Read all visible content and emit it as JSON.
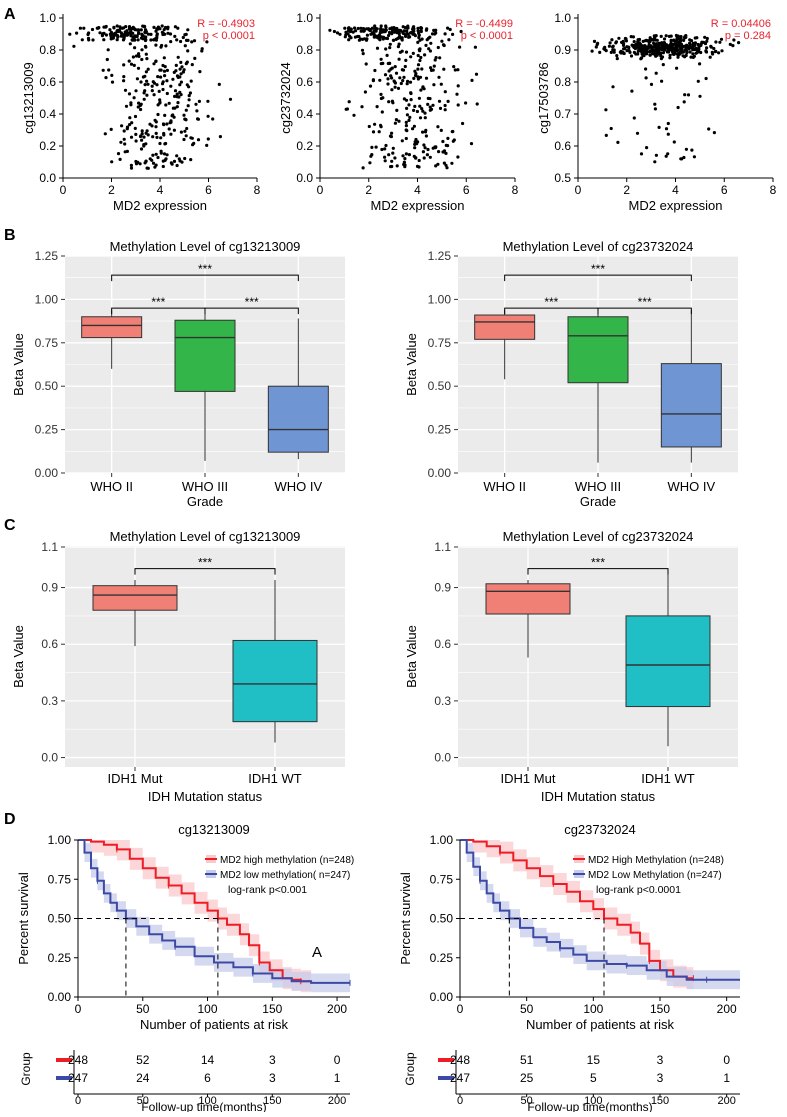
{
  "panel_labels": [
    "A",
    "B",
    "C",
    "D"
  ],
  "colors": {
    "who2": "#F07F76",
    "who3": "#33B54A",
    "who4": "#7095D3",
    "idh_mut": "#F07F76",
    "idh_wt": "#20BFC6",
    "km_high": "#EE1C24",
    "km_low": "#3C4AA6",
    "km_high_band": "#F9C9CC",
    "km_low_band": "#C7CCEB",
    "annot": "#E8242E",
    "panel_bg": "#EBEBEB"
  },
  "chart_data": [
    {
      "id": "A1",
      "type": "scatter",
      "xlabel": "MD2 expression",
      "ylabel": "cg13213009",
      "xlim": [
        0,
        8
      ],
      "ylim": [
        0,
        1.0
      ],
      "xticks": [
        "0",
        "2",
        "4",
        "6",
        "8"
      ],
      "yticks": [
        "0.0",
        "0.2",
        "0.4",
        "0.6",
        "0.8",
        "1.0"
      ],
      "annotation": [
        "R = -0.4903",
        "p < 0.0001"
      ],
      "point_count": 420,
      "seed": 11,
      "pattern": "decline",
      "note": "points cluster near 0.9 for low expression and spread toward 0.1 at higher expression"
    },
    {
      "id": "A2",
      "type": "scatter",
      "xlabel": "MD2 expression",
      "ylabel": "cg23732024",
      "xlim": [
        0,
        8
      ],
      "ylim": [
        0,
        1.0
      ],
      "xticks": [
        "0",
        "2",
        "4",
        "6",
        "8"
      ],
      "yticks": [
        "0.0",
        "0.2",
        "0.4",
        "0.6",
        "0.8",
        "1.0"
      ],
      "annotation": [
        "R = -0.4499",
        "p < 0.0001"
      ],
      "point_count": 420,
      "seed": 23,
      "pattern": "decline"
    },
    {
      "id": "A3",
      "type": "scatter",
      "xlabel": "MD2 expression",
      "ylabel": "cg17503786",
      "xlim": [
        0,
        8
      ],
      "ylim": [
        0.5,
        1.0
      ],
      "xticks": [
        "0",
        "2",
        "4",
        "6",
        "8"
      ],
      "yticks": [
        "0.5",
        "0.6",
        "0.7",
        "0.8",
        "0.9",
        "1.0"
      ],
      "annotation": [
        "R = 0.04406",
        "p = 0.284"
      ],
      "point_count": 420,
      "seed": 37,
      "pattern": "flat"
    },
    {
      "id": "B1",
      "type": "box",
      "title": "Methylation Level of cg13213009",
      "xlabel": "Grade",
      "ylabel": "Beta Value",
      "ylim": [
        0,
        1.25
      ],
      "yticks": [
        0,
        0.25,
        0.5,
        0.75,
        1.0,
        1.25
      ],
      "ytick_labels": [
        "0.00",
        "0.25",
        "0.50",
        "0.75",
        "1.00",
        "1.25"
      ],
      "categories": [
        "WHO II",
        "WHO III",
        "WHO IV"
      ],
      "boxes": [
        {
          "min": 0.6,
          "q1": 0.78,
          "median": 0.85,
          "q3": 0.9,
          "max": 0.94,
          "color_key": "who2"
        },
        {
          "min": 0.07,
          "q1": 0.47,
          "median": 0.78,
          "q3": 0.88,
          "max": 0.95,
          "color_key": "who3"
        },
        {
          "min": 0.08,
          "q1": 0.12,
          "median": 0.25,
          "q3": 0.5,
          "max": 0.89,
          "color_key": "who4"
        }
      ],
      "significance": [
        {
          "pair": [
            0,
            1
          ],
          "level": 0.95,
          "label": "***"
        },
        {
          "pair": [
            1,
            2
          ],
          "level": 0.95,
          "label": "***"
        },
        {
          "pair": [
            0,
            2
          ],
          "level": 1.14,
          "label": "***"
        }
      ]
    },
    {
      "id": "B2",
      "type": "box",
      "title": "Methylation Level of cg23732024",
      "xlabel": "Grade",
      "ylabel": "Beta Value",
      "ylim": [
        0,
        1.25
      ],
      "yticks": [
        0,
        0.25,
        0.5,
        0.75,
        1.0,
        1.25
      ],
      "ytick_labels": [
        "0.00",
        "0.25",
        "0.50",
        "0.75",
        "1.00",
        "1.25"
      ],
      "categories": [
        "WHO II",
        "WHO III",
        "WHO IV"
      ],
      "boxes": [
        {
          "min": 0.54,
          "q1": 0.77,
          "median": 0.87,
          "q3": 0.91,
          "max": 0.94,
          "color_key": "who2"
        },
        {
          "min": 0.06,
          "q1": 0.52,
          "median": 0.79,
          "q3": 0.9,
          "max": 0.95,
          "color_key": "who3"
        },
        {
          "min": 0.06,
          "q1": 0.15,
          "median": 0.34,
          "q3": 0.63,
          "max": 0.94,
          "color_key": "who4"
        }
      ],
      "significance": [
        {
          "pair": [
            0,
            1
          ],
          "level": 0.95,
          "label": "***"
        },
        {
          "pair": [
            1,
            2
          ],
          "level": 0.95,
          "label": "***"
        },
        {
          "pair": [
            0,
            2
          ],
          "level": 1.14,
          "label": "***"
        }
      ]
    },
    {
      "id": "C1",
      "type": "box",
      "title": "Methylation Level of cg13213009",
      "xlabel": "IDH Mutation status",
      "ylabel": "Beta Value",
      "ylim": [
        -0.05,
        1.12
      ],
      "yticks": [
        0,
        0.3,
        0.6,
        0.9
      ],
      "ytick_labels": [
        "0.0",
        "0.3",
        "0.6",
        "0.9"
      ],
      "top_tick_label": "1.1",
      "categories": [
        "IDH1 Mut",
        "IDH1 WT"
      ],
      "boxes": [
        {
          "min": 0.59,
          "q1": 0.78,
          "median": 0.86,
          "q3": 0.91,
          "max": 0.94,
          "color_key": "idh_mut"
        },
        {
          "min": 0.08,
          "q1": 0.19,
          "median": 0.39,
          "q3": 0.62,
          "max": 0.94,
          "color_key": "idh_wt"
        }
      ],
      "significance": [
        {
          "pair": [
            0,
            1
          ],
          "level": 1.0,
          "label": "***"
        }
      ]
    },
    {
      "id": "C2",
      "type": "box",
      "title": "Methylation Level of cg23732024",
      "xlabel": "IDH Mutation status",
      "ylabel": "Beta Value",
      "ylim": [
        -0.05,
        1.12
      ],
      "yticks": [
        0,
        0.3,
        0.6,
        0.9
      ],
      "ytick_labels": [
        "0.0",
        "0.3",
        "0.6",
        "0.9"
      ],
      "top_tick_label": "1.1",
      "categories": [
        "IDH1 Mut",
        "IDH1 WT"
      ],
      "boxes": [
        {
          "min": 0.53,
          "q1": 0.76,
          "median": 0.88,
          "q3": 0.92,
          "max": 0.94,
          "color_key": "idh_mut"
        },
        {
          "min": 0.06,
          "q1": 0.27,
          "median": 0.49,
          "q3": 0.75,
          "max": 1.0,
          "color_key": "idh_wt"
        }
      ],
      "significance": [
        {
          "pair": [
            0,
            1
          ],
          "level": 1.0,
          "label": "***"
        }
      ]
    },
    {
      "id": "D1",
      "type": "line",
      "title": "cg13213009",
      "xlabel": "Number of patients at risk",
      "ylabel": "Percent survival",
      "xlim": [
        0,
        210
      ],
      "ylim": [
        0,
        1.0
      ],
      "xticks": [
        "0",
        "50",
        "100",
        "150",
        "200"
      ],
      "yticks": [
        "0.00",
        "0.25",
        "0.50",
        "0.75",
        "1.00"
      ],
      "legend": [
        "MD2 high methylation (n=248)",
        "MD2 low methylation( n=247)"
      ],
      "pvalue": "log-rank p<0.001",
      "marker": "A",
      "median_survival": [
        37,
        108
      ],
      "series": [
        {
          "name": "MD2 high methylation (n=248)",
          "color_key": "km_high",
          "band_key": "km_high_band",
          "points": [
            [
              0,
              1.0
            ],
            [
              10,
              0.99
            ],
            [
              20,
              0.97
            ],
            [
              30,
              0.94
            ],
            [
              40,
              0.88
            ],
            [
              50,
              0.82
            ],
            [
              60,
              0.76
            ],
            [
              70,
              0.71
            ],
            [
              80,
              0.66
            ],
            [
              90,
              0.6
            ],
            [
              100,
              0.55
            ],
            [
              108,
              0.5
            ],
            [
              115,
              0.46
            ],
            [
              125,
              0.4
            ],
            [
              132,
              0.33
            ],
            [
              140,
              0.22
            ],
            [
              148,
              0.17
            ],
            [
              158,
              0.12
            ],
            [
              165,
              0.11
            ],
            [
              172,
              0.1
            ],
            [
              180,
              0.1
            ]
          ],
          "band": 0.07
        },
        {
          "name": "MD2 low methylation( n=247)",
          "color_key": "km_low",
          "band_key": "km_low_band",
          "points": [
            [
              0,
              1.0
            ],
            [
              5,
              0.92
            ],
            [
              10,
              0.82
            ],
            [
              15,
              0.74
            ],
            [
              20,
              0.66
            ],
            [
              25,
              0.6
            ],
            [
              30,
              0.55
            ],
            [
              37,
              0.5
            ],
            [
              45,
              0.45
            ],
            [
              55,
              0.4
            ],
            [
              65,
              0.36
            ],
            [
              75,
              0.32
            ],
            [
              90,
              0.26
            ],
            [
              105,
              0.22
            ],
            [
              120,
              0.19
            ],
            [
              135,
              0.15
            ],
            [
              150,
              0.12
            ],
            [
              165,
              0.1
            ],
            [
              180,
              0.09
            ],
            [
              210,
              0.09
            ]
          ],
          "band": 0.06
        }
      ]
    },
    {
      "id": "D2",
      "type": "line",
      "title": "cg23732024",
      "xlabel": "Number of patients at risk",
      "ylabel": "Percent survival",
      "xlim": [
        0,
        210
      ],
      "ylim": [
        0,
        1.0
      ],
      "xticks": [
        "0",
        "50",
        "100",
        "150",
        "200"
      ],
      "yticks": [
        "0.00",
        "0.25",
        "0.50",
        "0.75",
        "1.00"
      ],
      "legend": [
        "MD2 High Methylation (n=248)",
        "MD2 Low Methylation (n=247)"
      ],
      "pvalue": "log-rank p<0.0001",
      "median_survival": [
        37,
        108
      ],
      "series": [
        {
          "name": "MD2 High Methylation (n=248)",
          "color_key": "km_high",
          "band_key": "km_high_band",
          "points": [
            [
              0,
              1.0
            ],
            [
              10,
              0.99
            ],
            [
              20,
              0.96
            ],
            [
              30,
              0.92
            ],
            [
              40,
              0.87
            ],
            [
              50,
              0.82
            ],
            [
              60,
              0.77
            ],
            [
              70,
              0.72
            ],
            [
              80,
              0.67
            ],
            [
              90,
              0.61
            ],
            [
              100,
              0.56
            ],
            [
              108,
              0.5
            ],
            [
              118,
              0.46
            ],
            [
              128,
              0.41
            ],
            [
              135,
              0.34
            ],
            [
              142,
              0.23
            ],
            [
              150,
              0.17
            ],
            [
              160,
              0.13
            ],
            [
              170,
              0.12
            ],
            [
              175,
              0.12
            ]
          ],
          "band": 0.07
        },
        {
          "name": "MD2 Low Methylation (n=247)",
          "color_key": "km_low",
          "band_key": "km_low_band",
          "points": [
            [
              0,
              1.0
            ],
            [
              5,
              0.92
            ],
            [
              10,
              0.83
            ],
            [
              15,
              0.74
            ],
            [
              20,
              0.66
            ],
            [
              25,
              0.6
            ],
            [
              30,
              0.55
            ],
            [
              37,
              0.5
            ],
            [
              45,
              0.44
            ],
            [
              55,
              0.38
            ],
            [
              65,
              0.35
            ],
            [
              75,
              0.31
            ],
            [
              85,
              0.27
            ],
            [
              95,
              0.23
            ],
            [
              110,
              0.21
            ],
            [
              125,
              0.2
            ],
            [
              140,
              0.17
            ],
            [
              155,
              0.13
            ],
            [
              170,
              0.11
            ],
            [
              185,
              0.11
            ],
            [
              210,
              0.11
            ]
          ],
          "band": 0.06
        }
      ]
    }
  ],
  "risk_tables": [
    {
      "id": "R1",
      "group_label": "Group",
      "xlabel": "Follow-up time(months)",
      "xticks": [
        "0",
        "50",
        "100",
        "150",
        "200"
      ],
      "rows": [
        {
          "color_key": "km_high",
          "values": [
            "248",
            "52",
            "14",
            "3",
            "0"
          ]
        },
        {
          "color_key": "km_low",
          "values": [
            "247",
            "24",
            "6",
            "3",
            "1"
          ]
        }
      ]
    },
    {
      "id": "R2",
      "group_label": "Group",
      "xlabel": "Follow-up time(months)",
      "xticks": [
        "0",
        "50",
        "100",
        "150",
        "200"
      ],
      "rows": [
        {
          "color_key": "km_high",
          "values": [
            "248",
            "51",
            "15",
            "3",
            "0"
          ]
        },
        {
          "color_key": "km_low",
          "values": [
            "247",
            "25",
            "5",
            "3",
            "1"
          ]
        }
      ]
    }
  ]
}
